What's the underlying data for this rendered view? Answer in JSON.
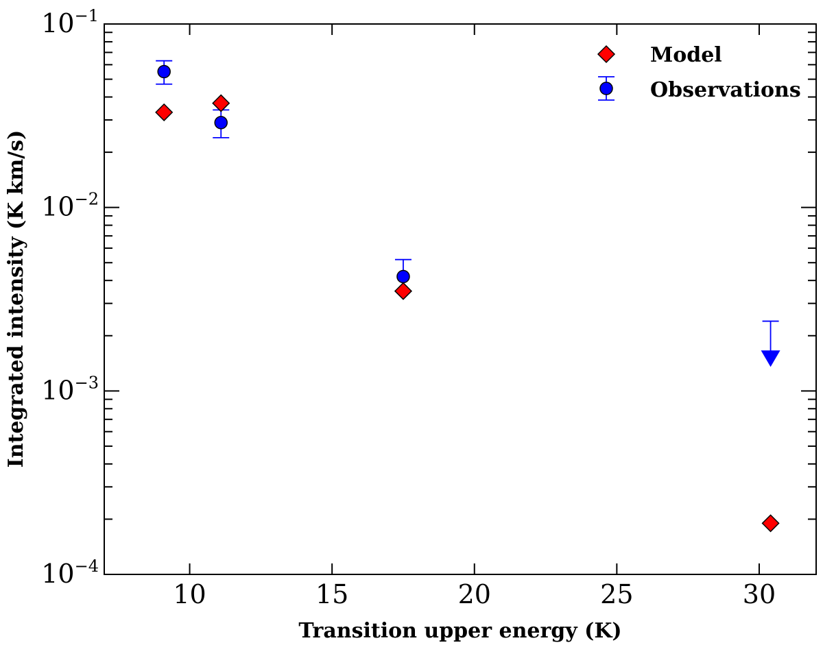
{
  "chart_data": {
    "type": "scatter",
    "title": "",
    "xlabel": "Transition upper energy (K)",
    "ylabel": "Integrated intensity (K km/s)",
    "xlim": [
      7,
      32
    ],
    "ylim": [
      0.0001,
      0.1
    ],
    "yscale": "log",
    "xticks": [
      10,
      15,
      20,
      25,
      30
    ],
    "yticks": [
      {
        "value": 0.1,
        "base": "10",
        "exp": "−1"
      },
      {
        "value": 0.01,
        "base": "10",
        "exp": "−2"
      },
      {
        "value": 0.001,
        "base": "10",
        "exp": "−3"
      },
      {
        "value": 0.0001,
        "base": "10",
        "exp": "−4"
      }
    ],
    "legend_position": "top-right",
    "series": [
      {
        "name": "Model",
        "marker": "diamond",
        "color": "#ff0000",
        "points": [
          {
            "x": 9.1,
            "y": 0.033
          },
          {
            "x": 11.1,
            "y": 0.037
          },
          {
            "x": 17.5,
            "y": 0.0035
          },
          {
            "x": 30.4,
            "y": 0.00019
          }
        ]
      },
      {
        "name": "Observations",
        "marker": "circle",
        "color": "#0000ff",
        "points": [
          {
            "x": 9.1,
            "y": 0.055,
            "err_low": 0.047,
            "err_high": 0.063
          },
          {
            "x": 11.1,
            "y": 0.029,
            "err_low": 0.024,
            "err_high": 0.034
          },
          {
            "x": 17.5,
            "y": 0.0042,
            "err_low": 0.0035,
            "err_high": 0.0052
          }
        ],
        "upper_limits": [
          {
            "x": 30.4,
            "y": 0.0024,
            "arrow_to": 0.0015
          }
        ]
      }
    ]
  }
}
